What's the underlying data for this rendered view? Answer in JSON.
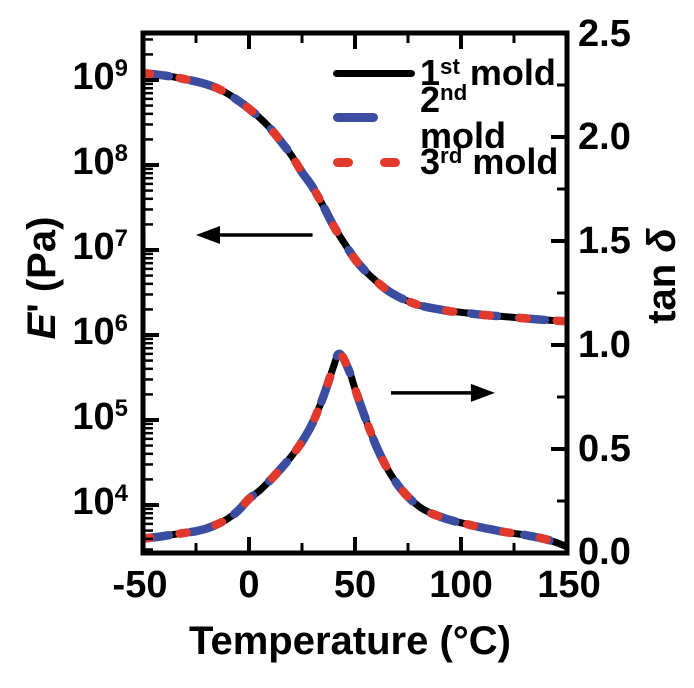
{
  "chart_data": {
    "type": "line",
    "title": "",
    "x_axis": {
      "label": "Temperature (°C)",
      "lim": [
        -50,
        150
      ],
      "major_ticks": [
        -50,
        0,
        50,
        100,
        150
      ],
      "minor_ticks": [
        -25,
        25,
        75,
        125
      ],
      "tick_labels": [
        "-50",
        "0",
        "50",
        "100",
        "150"
      ]
    },
    "left_y_axis": {
      "label": "E' (Pa)",
      "label_symbol": "E",
      "label_rest": "' (Pa)",
      "scale": "log",
      "unit": "Pa",
      "major_tick_exponents": [
        9,
        8,
        7,
        6,
        5,
        4
      ],
      "tick_labels": [
        {
          "base": "10",
          "exp": "9"
        },
        {
          "base": "10",
          "exp": "8"
        },
        {
          "base": "10",
          "exp": "7"
        },
        {
          "base": "10",
          "exp": "6"
        },
        {
          "base": "10",
          "exp": "5"
        },
        {
          "base": "10",
          "exp": "4"
        }
      ]
    },
    "right_y_axis": {
      "label": "tan δ",
      "label_text": "tan ",
      "label_symbol": "δ",
      "lim": [
        0,
        2.5
      ],
      "major_ticks": [
        0.0,
        0.5,
        1.0,
        1.5,
        2.0,
        2.5
      ],
      "minor_tick_step": 0.25,
      "tick_labels": [
        "2.5",
        "2.0",
        "1.5",
        "1.0",
        "0.5",
        "0.0"
      ]
    },
    "legend": [
      {
        "label": "1st mold",
        "num": "1",
        "sup": "st",
        "rest": " mold",
        "color": "#000000",
        "line_style": "solid"
      },
      {
        "label": "2nd mold",
        "num": "2",
        "sup": "nd",
        "rest": " mold",
        "color": "#3b4da0",
        "line_style": "long-dash"
      },
      {
        "label": "3rd mold",
        "num": "3",
        "sup": "rd",
        "rest": " mold",
        "color": "#e2392d",
        "line_style": "dot-dash"
      }
    ],
    "note": "The three mold curves overlap within line width for both quantities",
    "series": [
      {
        "name": "E' storage modulus",
        "axis": "left",
        "x": [
          -50,
          -45,
          -40,
          -35,
          -30,
          -25,
          -20,
          -15,
          -10,
          -5,
          0,
          5,
          10,
          15,
          20,
          25,
          30,
          35,
          40,
          45,
          50,
          55,
          60,
          65,
          70,
          75,
          80,
          85,
          90,
          95,
          100,
          110,
          120,
          130,
          140,
          150
        ],
        "y": [
          1200000000.0,
          1170000000.0,
          1130000000.0,
          1080000000.0,
          1020000000.0,
          960000000.0,
          890000000.0,
          800000000.0,
          690000000.0,
          570000000.0,
          460000000.0,
          360000000.0,
          270000000.0,
          190000000.0,
          130000000.0,
          82000000.0,
          55000000.0,
          33000000.0,
          19000000.0,
          12000000.0,
          7800000.0,
          5600000.0,
          4300000.0,
          3400000.0,
          2850000.0,
          2500000.0,
          2250000.0,
          2100000.0,
          2000000.0,
          1900000.0,
          1850000.0,
          1730000.0,
          1650000.0,
          1570000.0,
          1500000.0,
          1450000.0
        ]
      },
      {
        "name": "tan delta",
        "axis": "right",
        "x": [
          -50,
          -45,
          -40,
          -35,
          -30,
          -25,
          -20,
          -15,
          -10,
          -5,
          0,
          5,
          10,
          15,
          20,
          25,
          30,
          35,
          38,
          40,
          42,
          44,
          46,
          48,
          50,
          55,
          60,
          65,
          70,
          75,
          80,
          85,
          90,
          95,
          100,
          105,
          110,
          115,
          120,
          125,
          130,
          135,
          140,
          145,
          150
        ],
        "y": [
          0.07,
          0.075,
          0.082,
          0.09,
          0.097,
          0.105,
          0.118,
          0.138,
          0.165,
          0.205,
          0.26,
          0.3,
          0.35,
          0.405,
          0.465,
          0.535,
          0.625,
          0.75,
          0.84,
          0.9,
          0.955,
          0.945,
          0.905,
          0.855,
          0.79,
          0.645,
          0.515,
          0.41,
          0.33,
          0.27,
          0.225,
          0.195,
          0.175,
          0.158,
          0.145,
          0.133,
          0.122,
          0.112,
          0.102,
          0.094,
          0.087,
          0.077,
          0.066,
          0.05,
          0.03
        ]
      }
    ],
    "annotations": [
      {
        "type": "arrow",
        "direction": "left",
        "axis": "left",
        "x_from": 30,
        "x_to": -25,
        "value": 15000000.0
      },
      {
        "type": "arrow",
        "direction": "right",
        "axis": "right",
        "x_from": 67,
        "x_to": 116,
        "value": 0.77
      }
    ]
  }
}
